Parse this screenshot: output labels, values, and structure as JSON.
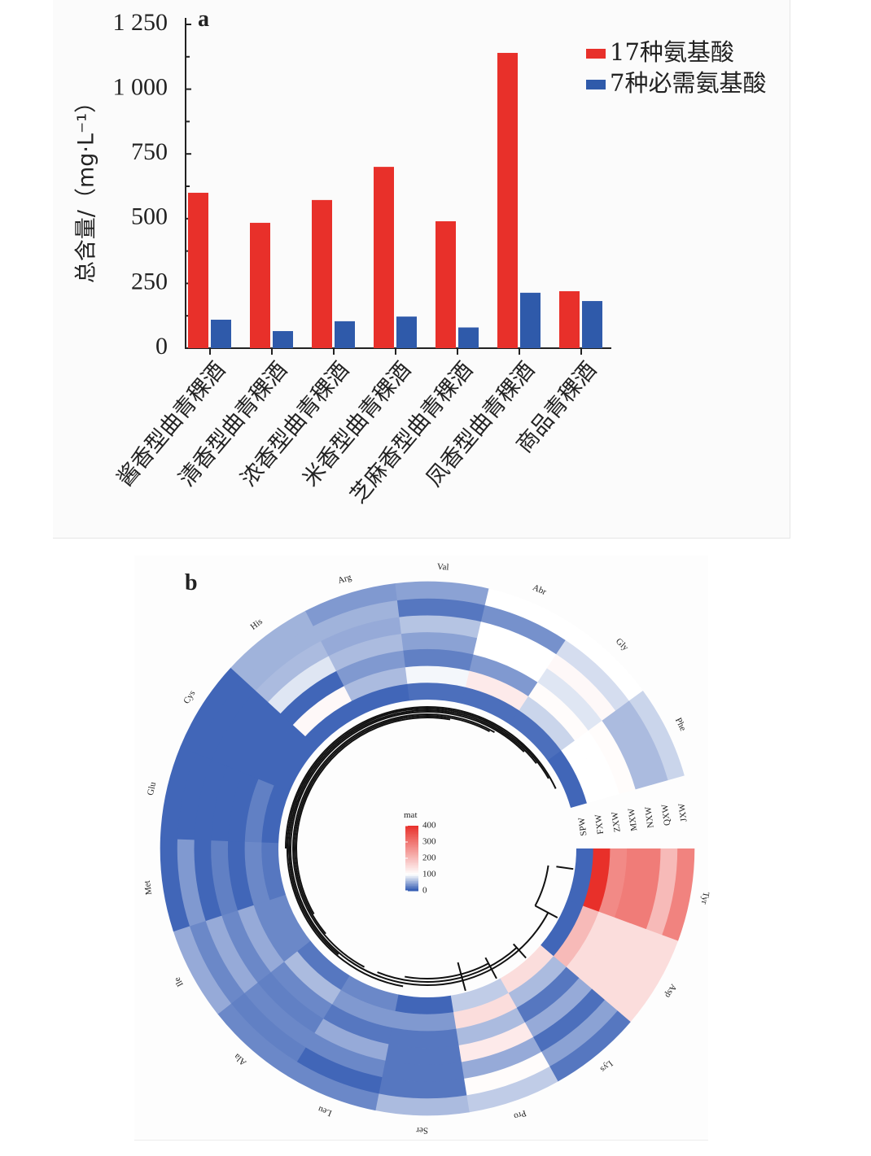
{
  "chart_data": [
    {
      "type": "bar",
      "panel": "a",
      "title": "",
      "xlabel": "",
      "ylabel": "总含量/（mg·L⁻¹）",
      "ylim": [
        0,
        1250
      ],
      "yticks": [
        0,
        250,
        500,
        750,
        1000,
        1250
      ],
      "ytick_labels": [
        "0",
        "250",
        "500",
        "750",
        "1 000",
        "1 250"
      ],
      "categories": [
        "酱香型曲青稞酒",
        "清香型曲青稞酒",
        "浓香型曲青稞酒",
        "米香型曲青稞酒",
        "芝麻香型曲青稞酒",
        "凤香型曲青稞酒",
        "商品青稞酒"
      ],
      "series": [
        {
          "name": "17种氨基酸",
          "color": "#e8302a",
          "values": [
            600,
            484,
            572,
            700,
            490,
            1140,
            220
          ]
        },
        {
          "name": "7种必需氨基酸",
          "color": "#2f5aaa",
          "values": [
            110,
            66,
            104,
            122,
            80,
            214,
            182
          ]
        }
      ],
      "legend_position": "top-right",
      "grid": false
    },
    {
      "type": "heatmap",
      "subtype": "circular",
      "panel": "b",
      "colorbar_title": "mat",
      "colorbar_ticks": [
        0,
        100,
        200,
        300,
        400
      ],
      "color_low": "#2c55b0",
      "color_mid": "#ffffff",
      "color_high": "#e8302a",
      "color_mid_value": 100,
      "color_range": [
        0,
        400
      ],
      "tracks": [
        "SPW",
        "FXW",
        "ZXW",
        "MXW",
        "NXW",
        "QXW",
        "JXW"
      ],
      "sectors": [
        "Tyr",
        "Asp",
        "Lys",
        "Pro",
        "Ser",
        "Leu",
        "Ala",
        "Ile",
        "Met",
        "Glu",
        "Cys",
        "His",
        "Arg",
        "Val",
        "Abr",
        "Gly",
        "Phe"
      ],
      "values": [
        [
          10,
          400,
          270,
          290,
          290,
          200,
          280
        ],
        [
          10,
          200,
          150,
          150,
          150,
          150,
          150
        ],
        [
          150,
          60,
          20,
          50,
          15,
          45,
          20
        ],
        [
          70,
          150,
          60,
          130,
          50,
          105,
          70
        ],
        [
          10,
          40,
          20,
          20,
          20,
          20,
          60
        ],
        [
          30,
          40,
          20,
          50,
          30,
          10,
          30
        ],
        [
          20,
          60,
          30,
          25,
          30,
          25,
          30
        ],
        [
          30,
          30,
          50,
          30,
          50,
          30,
          50
        ],
        [
          20,
          30,
          10,
          25,
          10,
          40,
          10
        ],
        [
          10,
          25,
          10,
          10,
          10,
          10,
          10
        ],
        [
          10,
          10,
          10,
          10,
          10,
          10,
          10
        ],
        [
          10,
          110,
          10,
          85,
          60,
          55,
          55
        ],
        [
          10,
          60,
          40,
          60,
          50,
          55,
          40
        ],
        [
          15,
          95,
          25,
          45,
          65,
          20,
          45
        ],
        [
          15,
          130,
          40,
          100,
          100,
          35,
          100
        ],
        [
          15,
          75,
          105,
          85,
          110,
          80,
          100
        ],
        [
          10,
          100,
          100,
          105,
          60,
          60,
          75
        ]
      ],
      "dendrogram": true
    }
  ],
  "panels": {
    "a_letter": "a",
    "b_letter": "b"
  }
}
